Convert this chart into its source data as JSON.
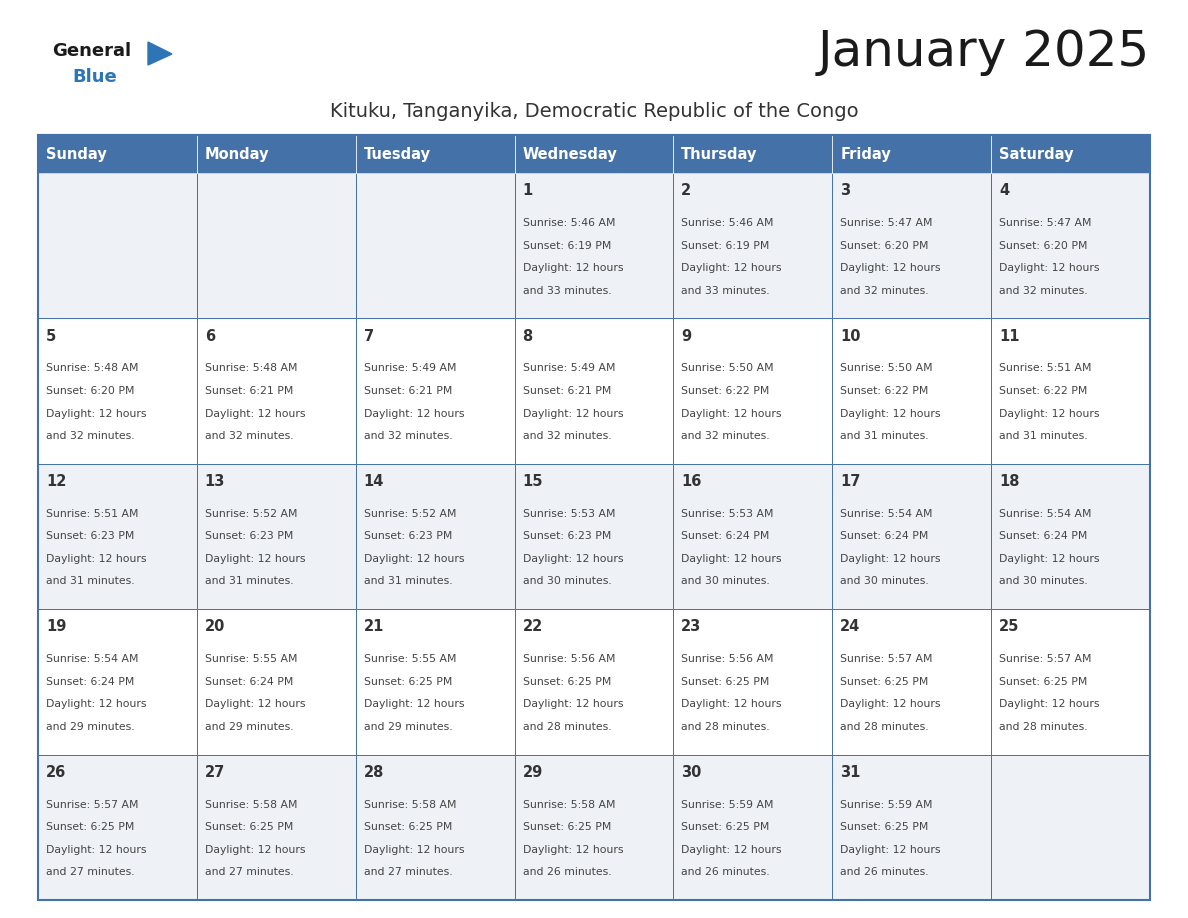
{
  "title": "January 2025",
  "subtitle": "Kituku, Tanganyika, Democratic Republic of the Congo",
  "days_of_week": [
    "Sunday",
    "Monday",
    "Tuesday",
    "Wednesday",
    "Thursday",
    "Friday",
    "Saturday"
  ],
  "header_bg": "#4472a8",
  "header_text": "#ffffff",
  "row_bg_odd": "#eef2f7",
  "row_bg_even": "#ffffff",
  "cell_border": "#4472a8",
  "day_number_color": "#333333",
  "cell_text_color": "#444444",
  "title_color": "#1a1a1a",
  "subtitle_color": "#333333",
  "logo_general_color": "#1a1a1a",
  "logo_blue_color": "#2e75b6",
  "calendar_data": [
    [
      {
        "day": "",
        "sunrise": "",
        "sunset": "",
        "daylight": ""
      },
      {
        "day": "",
        "sunrise": "",
        "sunset": "",
        "daylight": ""
      },
      {
        "day": "",
        "sunrise": "",
        "sunset": "",
        "daylight": ""
      },
      {
        "day": "1",
        "sunrise": "5:46 AM",
        "sunset": "6:19 PM",
        "daylight": "33 minutes."
      },
      {
        "day": "2",
        "sunrise": "5:46 AM",
        "sunset": "6:19 PM",
        "daylight": "33 minutes."
      },
      {
        "day": "3",
        "sunrise": "5:47 AM",
        "sunset": "6:20 PM",
        "daylight": "32 minutes."
      },
      {
        "day": "4",
        "sunrise": "5:47 AM",
        "sunset": "6:20 PM",
        "daylight": "32 minutes."
      }
    ],
    [
      {
        "day": "5",
        "sunrise": "5:48 AM",
        "sunset": "6:20 PM",
        "daylight": "32 minutes."
      },
      {
        "day": "6",
        "sunrise": "5:48 AM",
        "sunset": "6:21 PM",
        "daylight": "32 minutes."
      },
      {
        "day": "7",
        "sunrise": "5:49 AM",
        "sunset": "6:21 PM",
        "daylight": "32 minutes."
      },
      {
        "day": "8",
        "sunrise": "5:49 AM",
        "sunset": "6:21 PM",
        "daylight": "32 minutes."
      },
      {
        "day": "9",
        "sunrise": "5:50 AM",
        "sunset": "6:22 PM",
        "daylight": "32 minutes."
      },
      {
        "day": "10",
        "sunrise": "5:50 AM",
        "sunset": "6:22 PM",
        "daylight": "31 minutes."
      },
      {
        "day": "11",
        "sunrise": "5:51 AM",
        "sunset": "6:22 PM",
        "daylight": "31 minutes."
      }
    ],
    [
      {
        "day": "12",
        "sunrise": "5:51 AM",
        "sunset": "6:23 PM",
        "daylight": "31 minutes."
      },
      {
        "day": "13",
        "sunrise": "5:52 AM",
        "sunset": "6:23 PM",
        "daylight": "31 minutes."
      },
      {
        "day": "14",
        "sunrise": "5:52 AM",
        "sunset": "6:23 PM",
        "daylight": "31 minutes."
      },
      {
        "day": "15",
        "sunrise": "5:53 AM",
        "sunset": "6:23 PM",
        "daylight": "30 minutes."
      },
      {
        "day": "16",
        "sunrise": "5:53 AM",
        "sunset": "6:24 PM",
        "daylight": "30 minutes."
      },
      {
        "day": "17",
        "sunrise": "5:54 AM",
        "sunset": "6:24 PM",
        "daylight": "30 minutes."
      },
      {
        "day": "18",
        "sunrise": "5:54 AM",
        "sunset": "6:24 PM",
        "daylight": "30 minutes."
      }
    ],
    [
      {
        "day": "19",
        "sunrise": "5:54 AM",
        "sunset": "6:24 PM",
        "daylight": "29 minutes."
      },
      {
        "day": "20",
        "sunrise": "5:55 AM",
        "sunset": "6:24 PM",
        "daylight": "29 minutes."
      },
      {
        "day": "21",
        "sunrise": "5:55 AM",
        "sunset": "6:25 PM",
        "daylight": "29 minutes."
      },
      {
        "day": "22",
        "sunrise": "5:56 AM",
        "sunset": "6:25 PM",
        "daylight": "28 minutes."
      },
      {
        "day": "23",
        "sunrise": "5:56 AM",
        "sunset": "6:25 PM",
        "daylight": "28 minutes."
      },
      {
        "day": "24",
        "sunrise": "5:57 AM",
        "sunset": "6:25 PM",
        "daylight": "28 minutes."
      },
      {
        "day": "25",
        "sunrise": "5:57 AM",
        "sunset": "6:25 PM",
        "daylight": "28 minutes."
      }
    ],
    [
      {
        "day": "26",
        "sunrise": "5:57 AM",
        "sunset": "6:25 PM",
        "daylight": "27 minutes."
      },
      {
        "day": "27",
        "sunrise": "5:58 AM",
        "sunset": "6:25 PM",
        "daylight": "27 minutes."
      },
      {
        "day": "28",
        "sunrise": "5:58 AM",
        "sunset": "6:25 PM",
        "daylight": "27 minutes."
      },
      {
        "day": "29",
        "sunrise": "5:58 AM",
        "sunset": "6:25 PM",
        "daylight": "26 minutes."
      },
      {
        "day": "30",
        "sunrise": "5:59 AM",
        "sunset": "6:25 PM",
        "daylight": "26 minutes."
      },
      {
        "day": "31",
        "sunrise": "5:59 AM",
        "sunset": "6:25 PM",
        "daylight": "26 minutes."
      },
      {
        "day": "",
        "sunrise": "",
        "sunset": "",
        "daylight": ""
      }
    ]
  ]
}
